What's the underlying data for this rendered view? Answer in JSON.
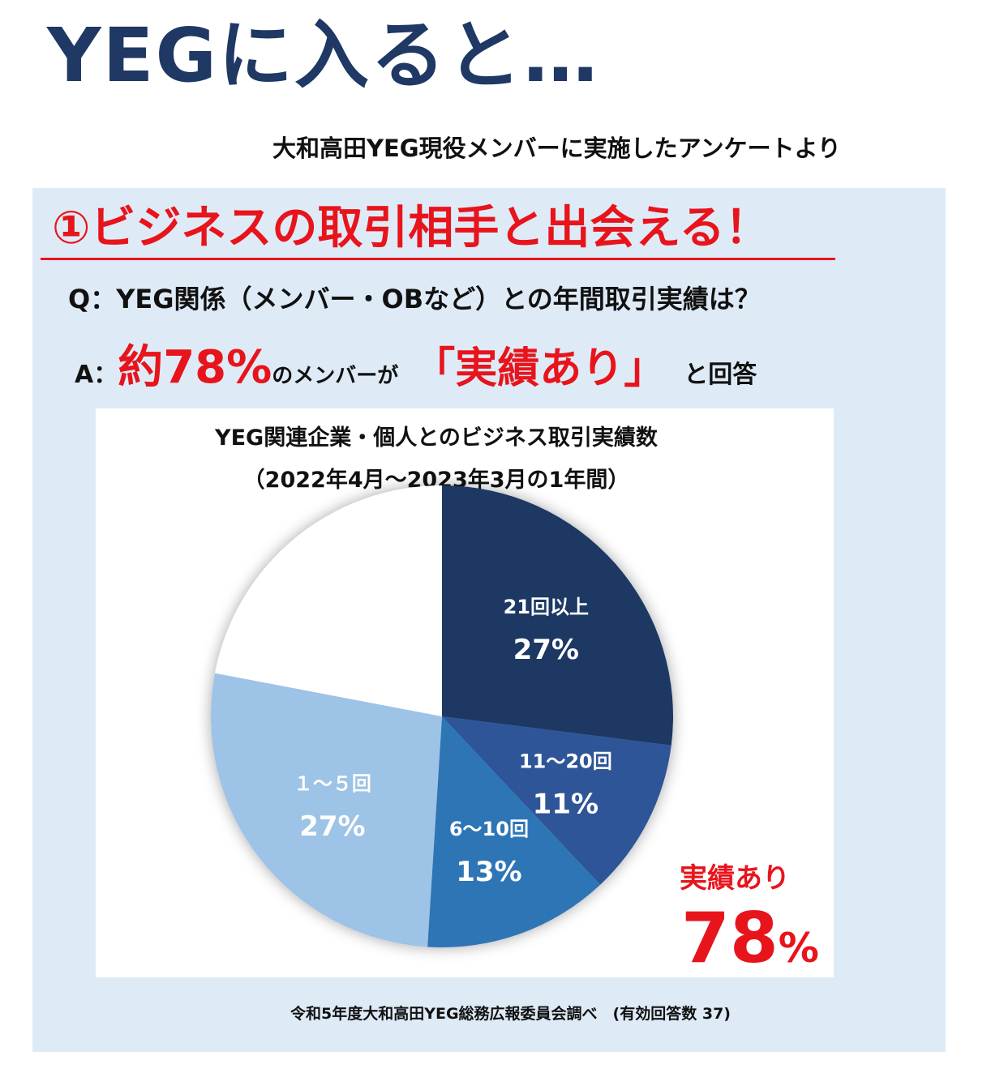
{
  "header": {
    "title": "YEGに入ると…",
    "subtitle": "大和高田YEG現役メンバーに実施したアンケートより"
  },
  "panel": {
    "headline": "①ビジネスの取引相手と出会える！",
    "question": "Q：YEG関係（メンバー・OBなど）との年間取引実績は？",
    "answer": {
      "prefix": "A：",
      "highlight": "約78%",
      "middle": "のメンバーが",
      "quote": "「実績あり」",
      "suffix": "と回答"
    },
    "source": "令和5年度大和高田YEG総務広報委員会調べ　(有効回答数 37)"
  },
  "chart_data": {
    "type": "pie",
    "title": "YEG関連企業・個人とのビジネス取引実績数",
    "subtitle": "（2022年4月〜2023年3月の1年間）",
    "slices": [
      {
        "label": "21回以上",
        "value": 27,
        "value_label": "27%",
        "color": "#1f3864"
      },
      {
        "label": "11〜20回",
        "value": 11,
        "value_label": "11%",
        "color": "#2f5597"
      },
      {
        "label": "6〜10回",
        "value": 13,
        "value_label": "13%",
        "color": "#2e75b6"
      },
      {
        "label": "１〜５回",
        "value": 27,
        "value_label": "27%",
        "color": "#9dc3e6"
      },
      {
        "label": "",
        "value": 22,
        "value_label": "",
        "color": "#ffffff"
      }
    ],
    "start_angle_deg": 0,
    "direction": "clockwise",
    "callout": {
      "label": "実績あり",
      "value": "78",
      "unit": "%"
    }
  }
}
